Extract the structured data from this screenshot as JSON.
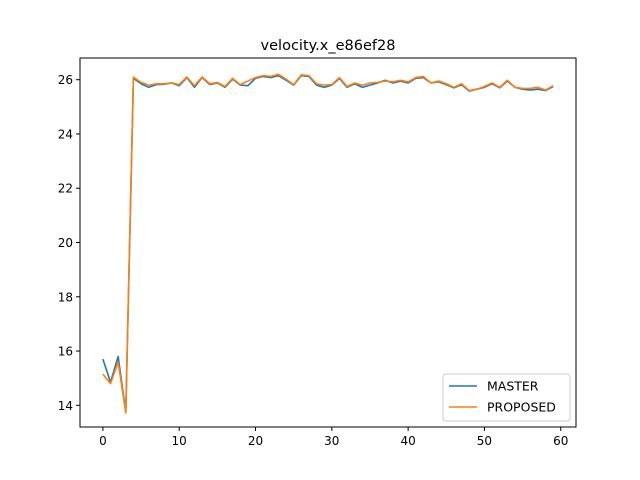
{
  "chart_data": {
    "type": "line",
    "title": "velocity.x_e86ef28",
    "xlabel": "",
    "ylabel": "",
    "xlim": [
      -3,
      62
    ],
    "ylim": [
      13.2,
      26.8
    ],
    "xticks": [
      0,
      10,
      20,
      30,
      40,
      50,
      60
    ],
    "yticks": [
      14,
      16,
      18,
      20,
      22,
      24,
      26
    ],
    "grid": false,
    "legend_position": "lower-right",
    "x": [
      0,
      1,
      2,
      3,
      4,
      5,
      6,
      7,
      8,
      9,
      10,
      11,
      12,
      13,
      14,
      15,
      16,
      17,
      18,
      19,
      20,
      21,
      22,
      23,
      24,
      25,
      26,
      27,
      28,
      29,
      30,
      31,
      32,
      33,
      34,
      35,
      36,
      37,
      38,
      39,
      40,
      41,
      42,
      43,
      44,
      45,
      46,
      47,
      48,
      49,
      50,
      51,
      52,
      53,
      54,
      55,
      56,
      57,
      58,
      59
    ],
    "series": [
      {
        "name": "MASTER",
        "color": "#1f77b4",
        "values": [
          15.7,
          14.85,
          15.8,
          13.75,
          26.05,
          25.85,
          25.72,
          25.82,
          25.83,
          25.88,
          25.78,
          26.08,
          25.72,
          26.08,
          25.82,
          25.88,
          25.72,
          26.02,
          25.8,
          25.78,
          26.05,
          26.12,
          26.08,
          26.15,
          25.98,
          25.8,
          26.15,
          26.12,
          25.8,
          25.72,
          25.8,
          26.05,
          25.72,
          25.85,
          25.72,
          25.8,
          25.88,
          25.98,
          25.88,
          25.95,
          25.88,
          26.05,
          26.08,
          25.88,
          25.92,
          25.82,
          25.7,
          25.82,
          25.58,
          25.65,
          25.72,
          25.85,
          25.7,
          25.95,
          25.72,
          25.65,
          25.62,
          25.65,
          25.6,
          25.75
        ]
      },
      {
        "name": "PROPOSED",
        "color": "#ff7f0e",
        "values": [
          15.15,
          14.8,
          15.6,
          13.72,
          26.1,
          25.9,
          25.8,
          25.85,
          25.85,
          25.88,
          25.82,
          26.1,
          25.78,
          26.1,
          25.85,
          25.9,
          25.75,
          26.05,
          25.82,
          25.95,
          26.08,
          26.15,
          26.12,
          26.2,
          26.02,
          25.82,
          26.18,
          26.15,
          25.85,
          25.8,
          25.82,
          26.08,
          25.75,
          25.88,
          25.8,
          25.88,
          25.9,
          25.95,
          25.92,
          25.98,
          25.92,
          26.08,
          26.12,
          25.88,
          25.95,
          25.85,
          25.72,
          25.85,
          25.6,
          25.65,
          25.75,
          25.88,
          25.72,
          25.98,
          25.72,
          25.68,
          25.68,
          25.72,
          25.62,
          25.78
        ]
      }
    ]
  }
}
